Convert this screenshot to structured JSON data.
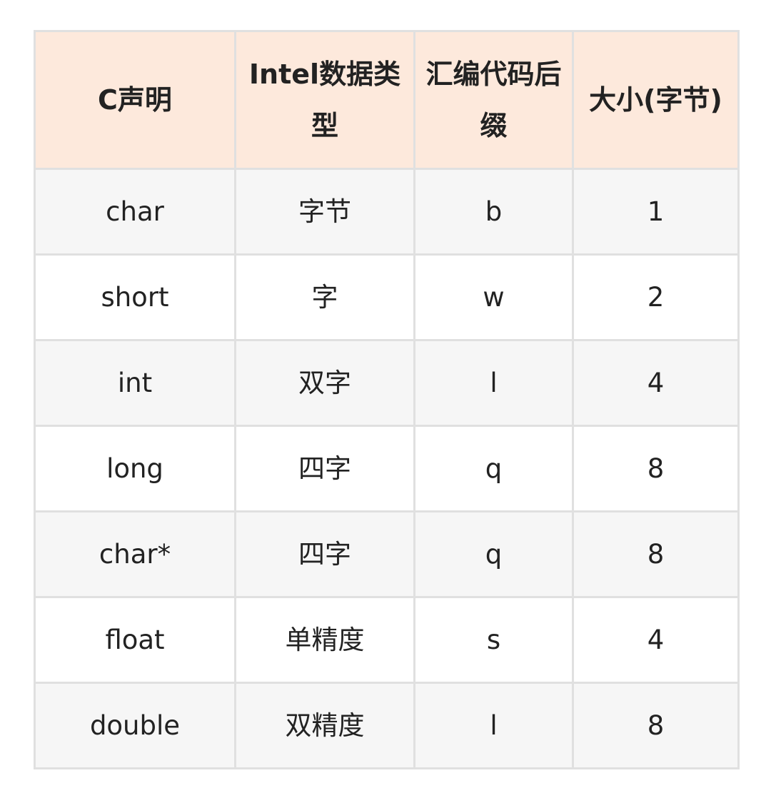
{
  "table": {
    "headers": [
      "C声明",
      "Intel数据类型",
      "汇编代码后缀",
      "大小(字节)"
    ],
    "rows": [
      [
        "char",
        "字节",
        "b",
        "1"
      ],
      [
        "short",
        "字",
        "w",
        "2"
      ],
      [
        "int",
        "双字",
        "l",
        "4"
      ],
      [
        "long",
        "四字",
        "q",
        "8"
      ],
      [
        "char*",
        "四字",
        "q",
        "8"
      ],
      [
        "float",
        "单精度",
        "s",
        "4"
      ],
      [
        "double",
        "双精度",
        "l",
        "8"
      ]
    ]
  },
  "colors": {
    "header_bg": "#fde9dc",
    "stripe_bg": "#f6f6f6",
    "border": "#e0e0e0"
  }
}
